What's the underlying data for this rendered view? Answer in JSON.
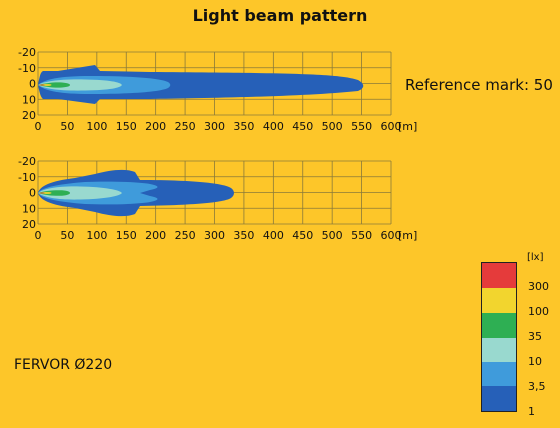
{
  "title": "Light beam pattern",
  "reference_mark": "Reference mark: 50",
  "product_name": "FERVOR Ø220",
  "colors": {
    "background": "#FDC629",
    "grid": "#8a7a3a",
    "isolux": [
      "#2660B8",
      "#3F9BDB",
      "#99D9CF",
      "#2EAF53",
      "#F2D52E",
      "#E53B3B"
    ]
  },
  "chart_data": [
    {
      "type": "heatmap",
      "x_ticks": [
        0,
        50,
        100,
        150,
        200,
        250,
        300,
        350,
        400,
        450,
        500,
        550,
        600
      ],
      "x_unit": "[m]",
      "y_ticks": [
        "-20",
        "-10",
        "0",
        "10",
        "20"
      ],
      "xlim": [
        0,
        600
      ],
      "ylim": [
        -20,
        20
      ],
      "isolux_reach_m": {
        "1": 555,
        "3,5": 220,
        "10": 130,
        "35": 55
      }
    },
    {
      "type": "heatmap",
      "x_ticks": [
        0,
        50,
        100,
        150,
        200,
        250,
        300,
        350,
        400,
        450,
        500,
        550,
        600
      ],
      "x_unit": "[m]",
      "y_ticks": [
        "-20",
        "-10",
        "0",
        "10",
        "20"
      ],
      "xlim": [
        0,
        600
      ],
      "ylim": [
        -20,
        20
      ],
      "isolux_reach_m": {
        "1": 335,
        "3,5": 170,
        "10": 115,
        "35": 55
      }
    }
  ],
  "legend": {
    "unit": "[lx]",
    "labels": [
      "300",
      "100",
      "35",
      "10",
      "3,5",
      "1"
    ]
  }
}
